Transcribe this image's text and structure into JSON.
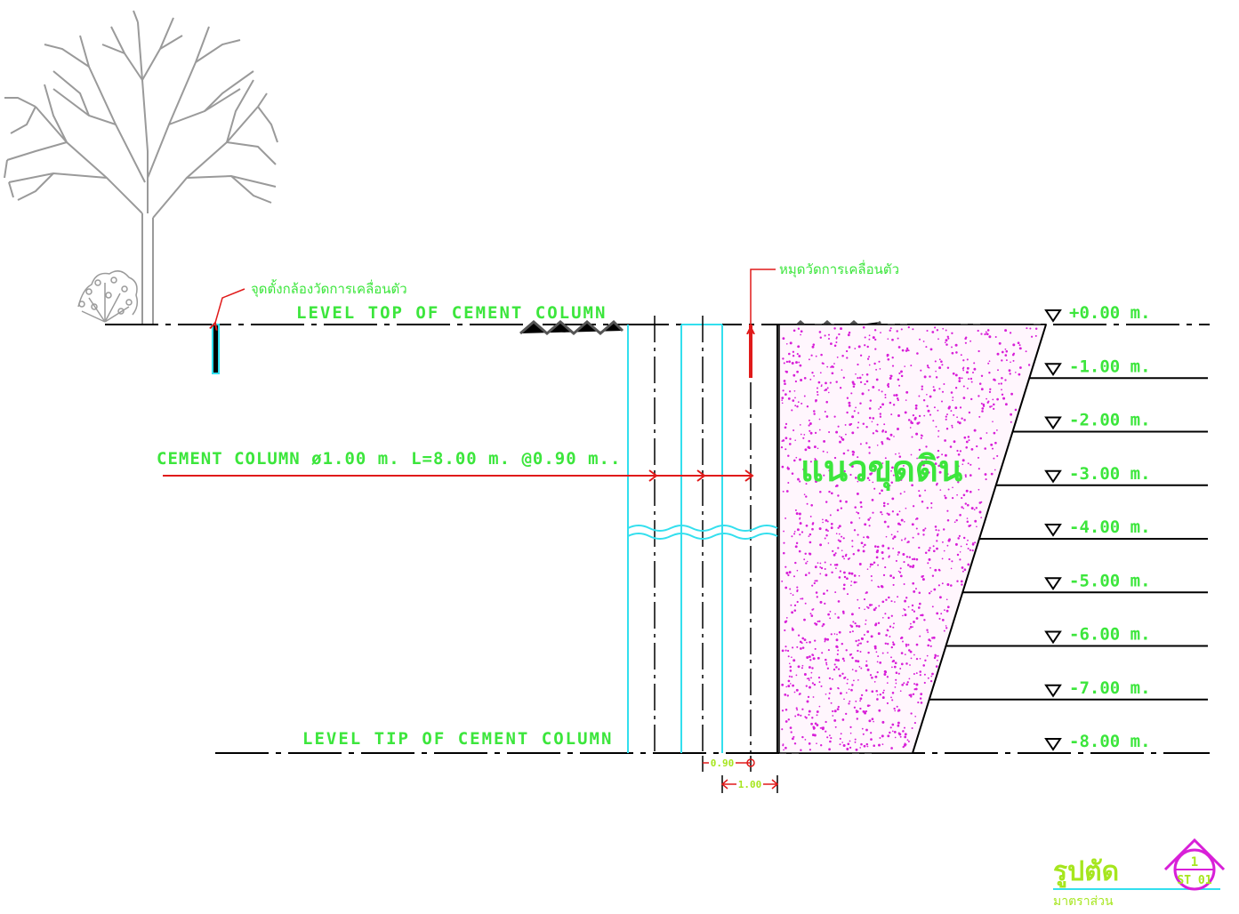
{
  "labels": {
    "camera_point": "จุดตั้งกล้องวัดการเคลื่อนตัว",
    "survey_pin": "หมุดวัดการเคลื่อนตัว",
    "level_top": "LEVEL TOP OF CEMENT COLUMN",
    "level_tip": "LEVEL TIP OF CEMENT COLUMN",
    "cement_column": "CEMENT COLUMN ø1.00 m. L=8.00 m. @0.90 m..",
    "excavation": "แนวขุดดิน"
  },
  "dimensions": {
    "spacing": "0.90",
    "diameter": "1.00"
  },
  "levels": [
    "+0.00 m.",
    "-1.00 m.",
    "-2.00 m.",
    "-3.00 m.",
    "-4.00 m.",
    "-5.00 m.",
    "-6.00 m.",
    "-7.00 m.",
    "-8.00 m."
  ],
  "title_block": {
    "title": "รูปตัด",
    "subtitle": "มาตราส่วน",
    "section_number": "1",
    "sheet_ref": "ST 01"
  },
  "colors": {
    "green": "#3ce63c",
    "cyan": "#33dfee",
    "red": "#e01a1a",
    "magenta": "#d81fd8",
    "tree_gray": "#9a9a9a",
    "title_green": "#a6e61e"
  }
}
